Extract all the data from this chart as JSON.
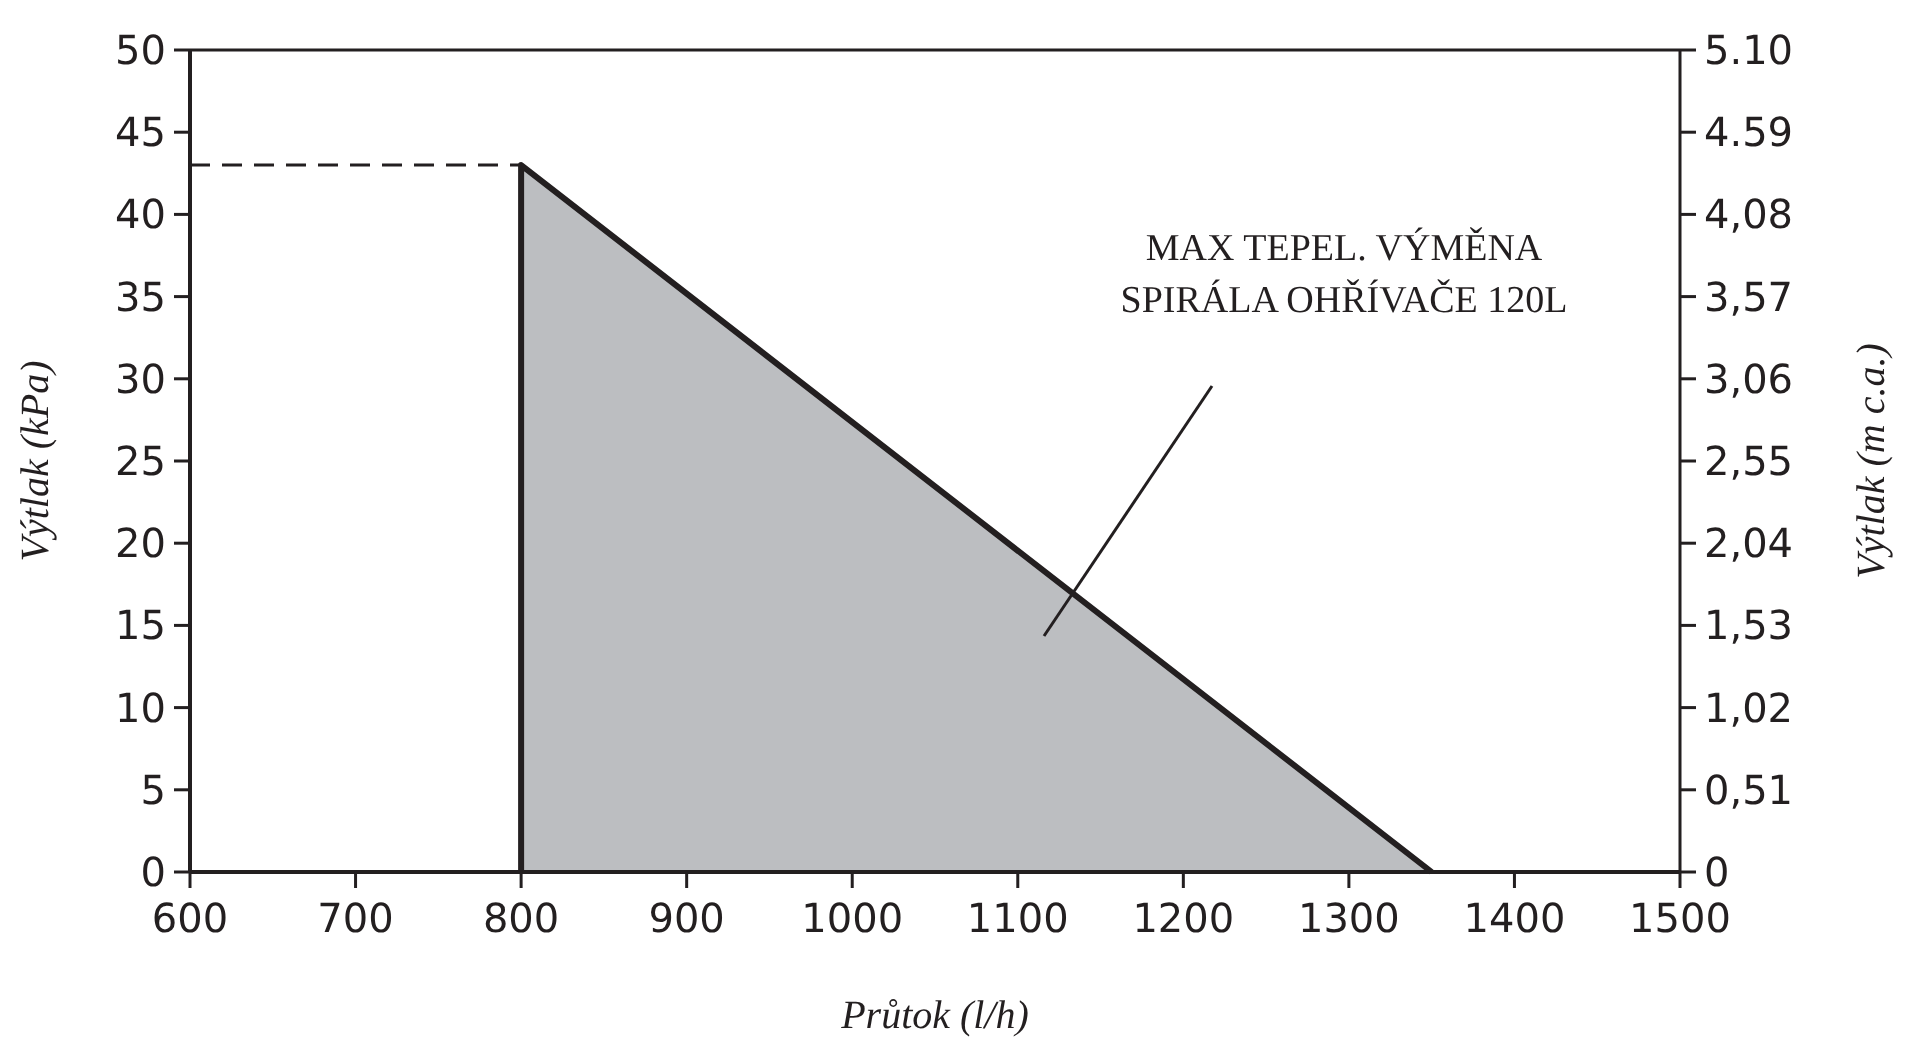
{
  "chart_data": {
    "type": "area",
    "xlabel": "Průtok (l/h)",
    "ylabel": "Výtlak (kPa)",
    "y2label": "Výtlak (m c.a.)",
    "x": [
      800,
      1350
    ],
    "series": [
      {
        "color": "#bcbec1",
        "values": [
          43,
          0
        ]
      }
    ],
    "xlim": [
      600,
      1500
    ],
    "xticks": [
      600,
      700,
      800,
      900,
      1000,
      1100,
      1200,
      1300,
      1400,
      1500
    ],
    "ylim": [
      0,
      50
    ],
    "yticks": [
      0,
      5,
      10,
      15,
      20,
      25,
      30,
      35,
      40,
      45,
      50
    ],
    "y2lim": [
      0,
      5.1
    ],
    "y2ticks": [
      0,
      {
        "value": 0.51,
        "label": "0,51"
      },
      {
        "value": 1.02,
        "label": "1,02"
      },
      {
        "value": 1.53,
        "label": "1,53"
      },
      {
        "value": 2.04,
        "label": "2,04"
      },
      {
        "value": 2.55,
        "label": "2,55"
      },
      {
        "value": 3.06,
        "label": "3,06"
      },
      {
        "value": 3.57,
        "label": "3,57"
      },
      {
        "value": 4.08,
        "label": "4,08"
      },
      {
        "value": 4.59,
        "label": "4.59"
      },
      {
        "value": 5.1,
        "label": "5.10"
      }
    ],
    "ref_lines": [
      {
        "axis": "y",
        "value": 43,
        "line_style": "dashed",
        "color": "#231f20"
      }
    ],
    "annotations": [
      "MAX TEPEL. VÝMĚNA\nSPIRÁLA OHŘÍVAČE 120L"
    ],
    "grid": false
  }
}
